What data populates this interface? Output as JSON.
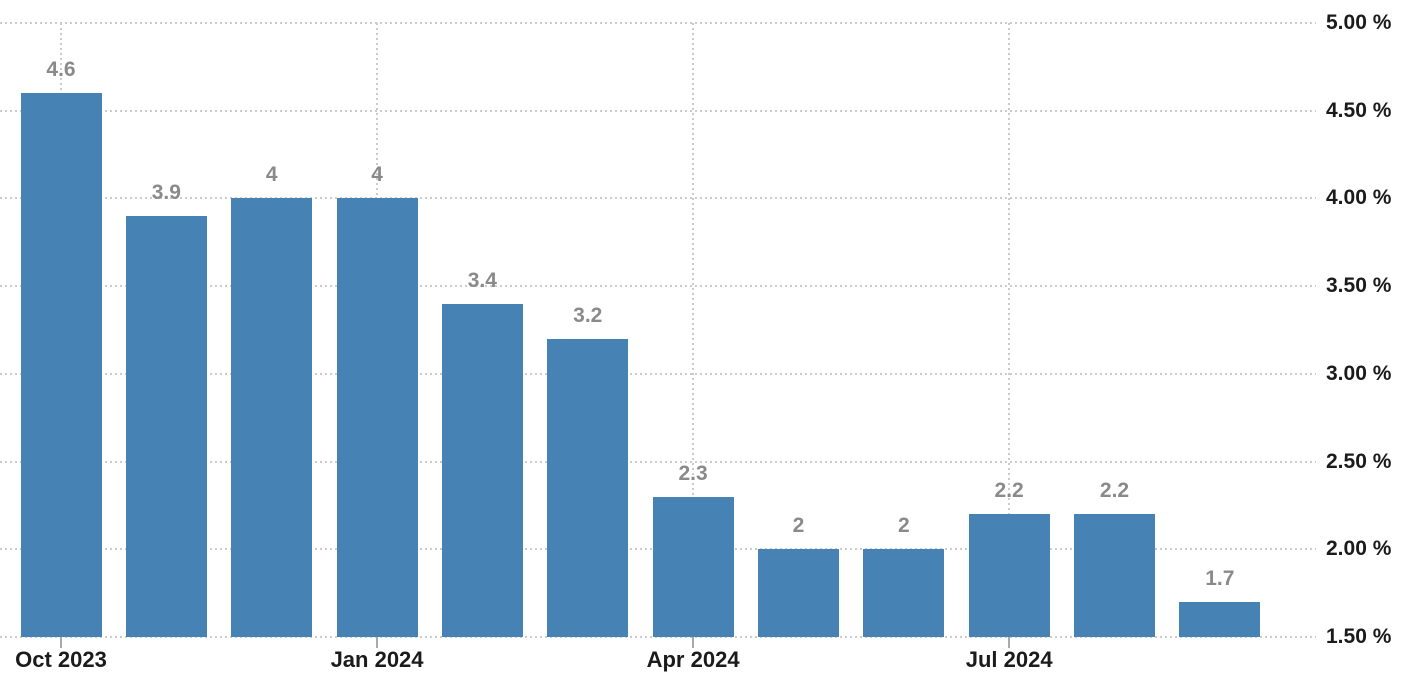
{
  "chart_data": {
    "type": "bar",
    "title": "",
    "unit": "%",
    "values": [
      4.6,
      3.9,
      4,
      4,
      3.4,
      3.2,
      2.3,
      2,
      2,
      2.2,
      2.2,
      1.7
    ],
    "bar_labels": [
      "4.6",
      "3.9",
      "4",
      "4",
      "3.4",
      "3.2",
      "2.3",
      "2",
      "2",
      "2.2",
      "2.2",
      "1.7"
    ],
    "x_ticks": [
      {
        "label": "Oct 2023",
        "bar_index": 0
      },
      {
        "label": "Jan 2024",
        "bar_index": 3
      },
      {
        "label": "Apr 2024",
        "bar_index": 6
      },
      {
        "label": "Jul 2024",
        "bar_index": 9
      }
    ],
    "y_ticks": [
      {
        "label": "5.00 %",
        "value": 5.0
      },
      {
        "label": "4.50 %",
        "value": 4.5
      },
      {
        "label": "4.00 %",
        "value": 4.0
      },
      {
        "label": "3.50 %",
        "value": 3.5
      },
      {
        "label": "3.00 %",
        "value": 3.0
      },
      {
        "label": "2.50 %",
        "value": 2.5
      },
      {
        "label": "2.00 %",
        "value": 2.0
      },
      {
        "label": "1.50 %",
        "value": 1.5
      }
    ],
    "ylim": [
      1.5,
      5.0
    ],
    "grid": "dotted",
    "legend": "none",
    "y_axis_position": "right",
    "colors": {
      "bar": "#4782b4",
      "grid": "#cbcbcb",
      "data_label": "#8a8a8a",
      "axis_label": "#1b1b1b",
      "tick": "#aaaaaa",
      "background": "#ffffff"
    }
  }
}
